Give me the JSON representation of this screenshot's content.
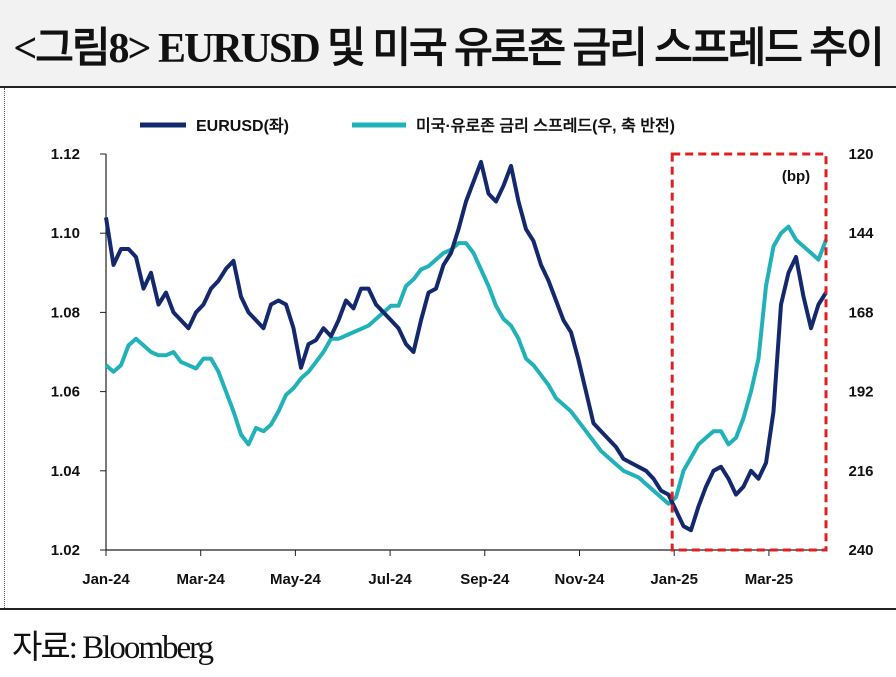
{
  "header": {
    "title": "<그림8> EURUSD 및 미국 유로존 금리 스프레드 추이"
  },
  "footer": {
    "source": "자료: Bloomberg"
  },
  "chart_data": {
    "type": "line",
    "title": "<그림8> EURUSD 및 미국 유로존 금리 스프레드 추이",
    "x_tick_labels": [
      "Jan-24",
      "Mar-24",
      "May-24",
      "Jul-24",
      "Sep-24",
      "Nov-24",
      "Jan-25",
      "Mar-25"
    ],
    "y_left": {
      "range": [
        1.02,
        1.12
      ],
      "ticks": [
        "1.12",
        "1.10",
        "1.08",
        "1.06",
        "1.04",
        "1.02"
      ]
    },
    "y_right": {
      "range": [
        120,
        240
      ],
      "inverted": true,
      "unit_label": "(bp)",
      "ticks": [
        "120",
        "144",
        "168",
        "192",
        "216",
        "240"
      ]
    },
    "grid": "none",
    "legend_position": "top",
    "highlight_box": {
      "from": "Jan-25",
      "to": "end",
      "style": "red dashed"
    },
    "colors": {
      "eurusd": "#14286e",
      "spread": "#20b2b8",
      "highlight": "#e02020",
      "axis": "#222222"
    },
    "x_start": "Jan-24",
    "x_step": "1 week",
    "series": [
      {
        "name": "EURUSD(좌)",
        "axis": "left",
        "values": [
          1.104,
          1.092,
          1.096,
          1.096,
          1.094,
          1.086,
          1.09,
          1.082,
          1.085,
          1.08,
          1.078,
          1.076,
          1.08,
          1.082,
          1.086,
          1.088,
          1.091,
          1.093,
          1.084,
          1.08,
          1.078,
          1.076,
          1.082,
          1.083,
          1.082,
          1.076,
          1.066,
          1.072,
          1.073,
          1.076,
          1.074,
          1.078,
          1.083,
          1.081,
          1.086,
          1.086,
          1.082,
          1.08,
          1.078,
          1.076,
          1.072,
          1.07,
          1.078,
          1.085,
          1.086,
          1.092,
          1.095,
          1.101,
          1.108,
          1.113,
          1.118,
          1.11,
          1.108,
          1.112,
          1.117,
          1.108,
          1.101,
          1.098,
          1.092,
          1.088,
          1.083,
          1.078,
          1.075,
          1.068,
          1.06,
          1.052,
          1.05,
          1.048,
          1.046,
          1.043,
          1.042,
          1.041,
          1.04,
          1.038,
          1.035,
          1.034,
          1.03,
          1.026,
          1.025,
          1.031,
          1.036,
          1.04,
          1.041,
          1.038,
          1.034,
          1.036,
          1.04,
          1.038,
          1.042,
          1.055,
          1.082,
          1.09,
          1.094,
          1.084,
          1.076,
          1.082,
          1.085
        ]
      },
      {
        "name": "미국·유로존 금리 스프레드(우, 축 반전)",
        "axis": "right",
        "values": [
          184,
          186,
          184,
          178,
          176,
          178,
          180,
          181,
          181,
          180,
          183,
          184,
          185,
          182,
          182,
          186,
          192,
          198,
          205,
          208,
          203,
          204,
          202,
          198,
          193,
          191,
          188,
          186,
          183,
          180,
          176,
          176,
          175,
          174,
          173,
          172,
          170,
          168,
          166,
          166,
          160,
          158,
          155,
          154,
          152,
          150,
          149,
          147,
          147,
          150,
          155,
          160,
          166,
          170,
          172,
          176,
          182,
          184,
          187,
          190,
          194,
          196,
          198,
          201,
          204,
          207,
          210,
          212,
          214,
          216,
          217,
          218,
          220,
          222,
          224,
          226,
          224,
          216,
          212,
          208,
          206,
          204,
          204,
          208,
          206,
          200,
          192,
          182,
          160,
          148,
          144,
          142,
          146,
          148,
          150,
          152,
          146
        ]
      }
    ]
  }
}
